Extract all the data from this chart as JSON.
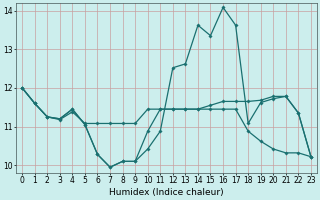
{
  "title": "",
  "xlabel": "Humidex (Indice chaleur)",
  "background_color": "#cceeed",
  "grid_color": "#b0cccb",
  "line_color": "#1a7070",
  "xlim": [
    -0.5,
    23.5
  ],
  "ylim": [
    9.8,
    14.2
  ],
  "yticks": [
    10,
    11,
    12,
    13,
    14
  ],
  "xticks": [
    0,
    1,
    2,
    3,
    4,
    5,
    6,
    7,
    8,
    9,
    10,
    11,
    12,
    13,
    14,
    15,
    16,
    17,
    18,
    19,
    20,
    21,
    22,
    23
  ],
  "series1_x": [
    0,
    1,
    2,
    3,
    4,
    5,
    6,
    7,
    8,
    9,
    10,
    11,
    12,
    13,
    14,
    15,
    16,
    17,
    18,
    19,
    20,
    21,
    22,
    23
  ],
  "series1_y": [
    12.0,
    11.6,
    11.25,
    11.2,
    11.45,
    11.05,
    10.28,
    9.95,
    10.1,
    10.1,
    10.42,
    10.88,
    12.52,
    12.62,
    13.62,
    13.35,
    14.08,
    13.62,
    11.08,
    11.62,
    11.72,
    11.78,
    11.35,
    10.22
  ],
  "series2_x": [
    0,
    1,
    2,
    3,
    4,
    5,
    6,
    7,
    8,
    9,
    10,
    11,
    12,
    13,
    14,
    15,
    16,
    17,
    18,
    19,
    20,
    21,
    22,
    23
  ],
  "series2_y": [
    12.0,
    11.6,
    11.25,
    11.18,
    11.38,
    11.08,
    11.08,
    11.08,
    11.08,
    11.08,
    11.45,
    11.45,
    11.45,
    11.45,
    11.45,
    11.55,
    11.65,
    11.65,
    11.65,
    11.68,
    11.78,
    11.78,
    11.35,
    10.22
  ],
  "series3_x": [
    0,
    1,
    2,
    3,
    4,
    5,
    6,
    7,
    8,
    9,
    10,
    11,
    12,
    13,
    14,
    15,
    16,
    17,
    18,
    19,
    20,
    21,
    22,
    23
  ],
  "series3_y": [
    12.0,
    11.6,
    11.25,
    11.2,
    11.45,
    11.05,
    10.28,
    9.95,
    10.1,
    10.1,
    10.88,
    11.45,
    11.45,
    11.45,
    11.45,
    11.45,
    11.45,
    11.45,
    10.88,
    10.62,
    10.42,
    10.32,
    10.32,
    10.22
  ],
  "marker_size": 1.8,
  "line_width": 0.9,
  "xlabel_fontsize": 6.5,
  "tick_fontsize": 5.5
}
